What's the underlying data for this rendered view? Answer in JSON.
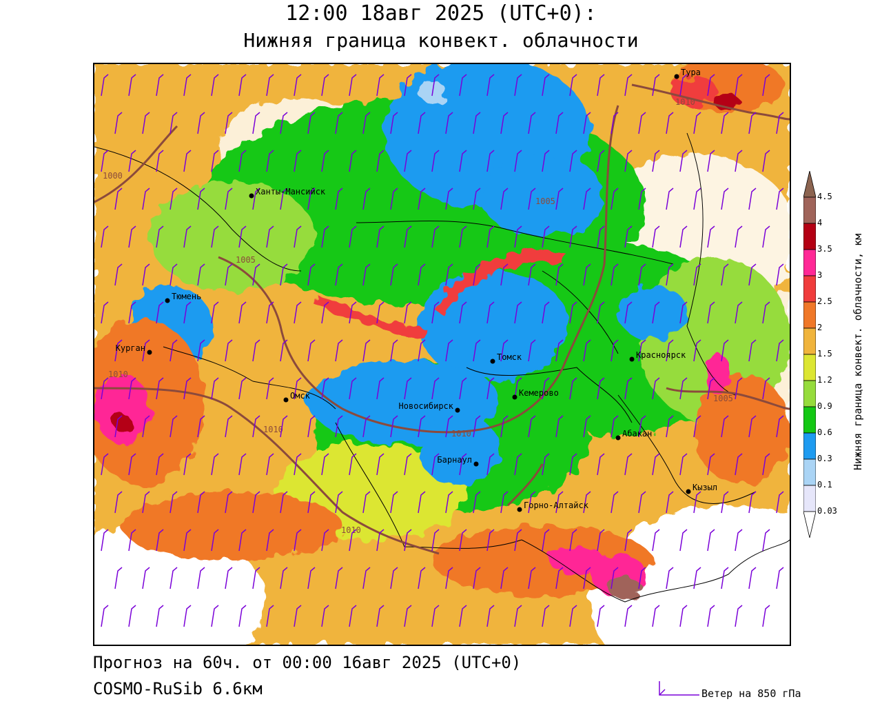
{
  "header": {
    "time_title": "12:00 18авг 2025 (UTC+0):",
    "field_title": "Нижняя граница конвект. облачности"
  },
  "footer": {
    "forecast": "Прогноз на 60ч. от 00:00 16авг 2025 (UTC+0)",
    "model": "COSMO-RuSib 6.6км",
    "wind_legend": "Ветер на 850 гПа"
  },
  "colorbar": {
    "title": "Нижняя граница конвект. облачности, км",
    "levels": [
      "0.03",
      "0.1",
      "0.3",
      "0.6",
      "0.9",
      "1.2",
      "1.5",
      "2",
      "2.5",
      "3",
      "3.5",
      "4",
      "4.5"
    ],
    "colors": [
      "#e6e6fa",
      "#aad4f5",
      "#1e9bf0",
      "#14c814",
      "#96dc3c",
      "#dce632",
      "#f0b43c",
      "#f07828",
      "#f03c3c",
      "#ff2896",
      "#b40014",
      "#a0645a",
      "#8c6450"
    ]
  },
  "cities": [
    {
      "name": "Тура"
    },
    {
      "name": "Ханты-Мансийск"
    },
    {
      "name": "Тюмень"
    },
    {
      "name": "Курган"
    },
    {
      "name": "Омск"
    },
    {
      "name": "Новосибирск"
    },
    {
      "name": "Томск"
    },
    {
      "name": "Кемерово"
    },
    {
      "name": "Красноярск"
    },
    {
      "name": "Абакан"
    },
    {
      "name": "Барнаул"
    },
    {
      "name": "Горно-Алтайск"
    },
    {
      "name": "Кызыл"
    }
  ],
  "isobars": [
    "1000",
    "1005",
    "1005",
    "1010",
    "1010",
    "1010",
    "1005",
    "1010",
    "1010"
  ],
  "colors": {
    "isobar": "#8b4a3c",
    "wind": "#7a00d8",
    "border": "#000000"
  }
}
